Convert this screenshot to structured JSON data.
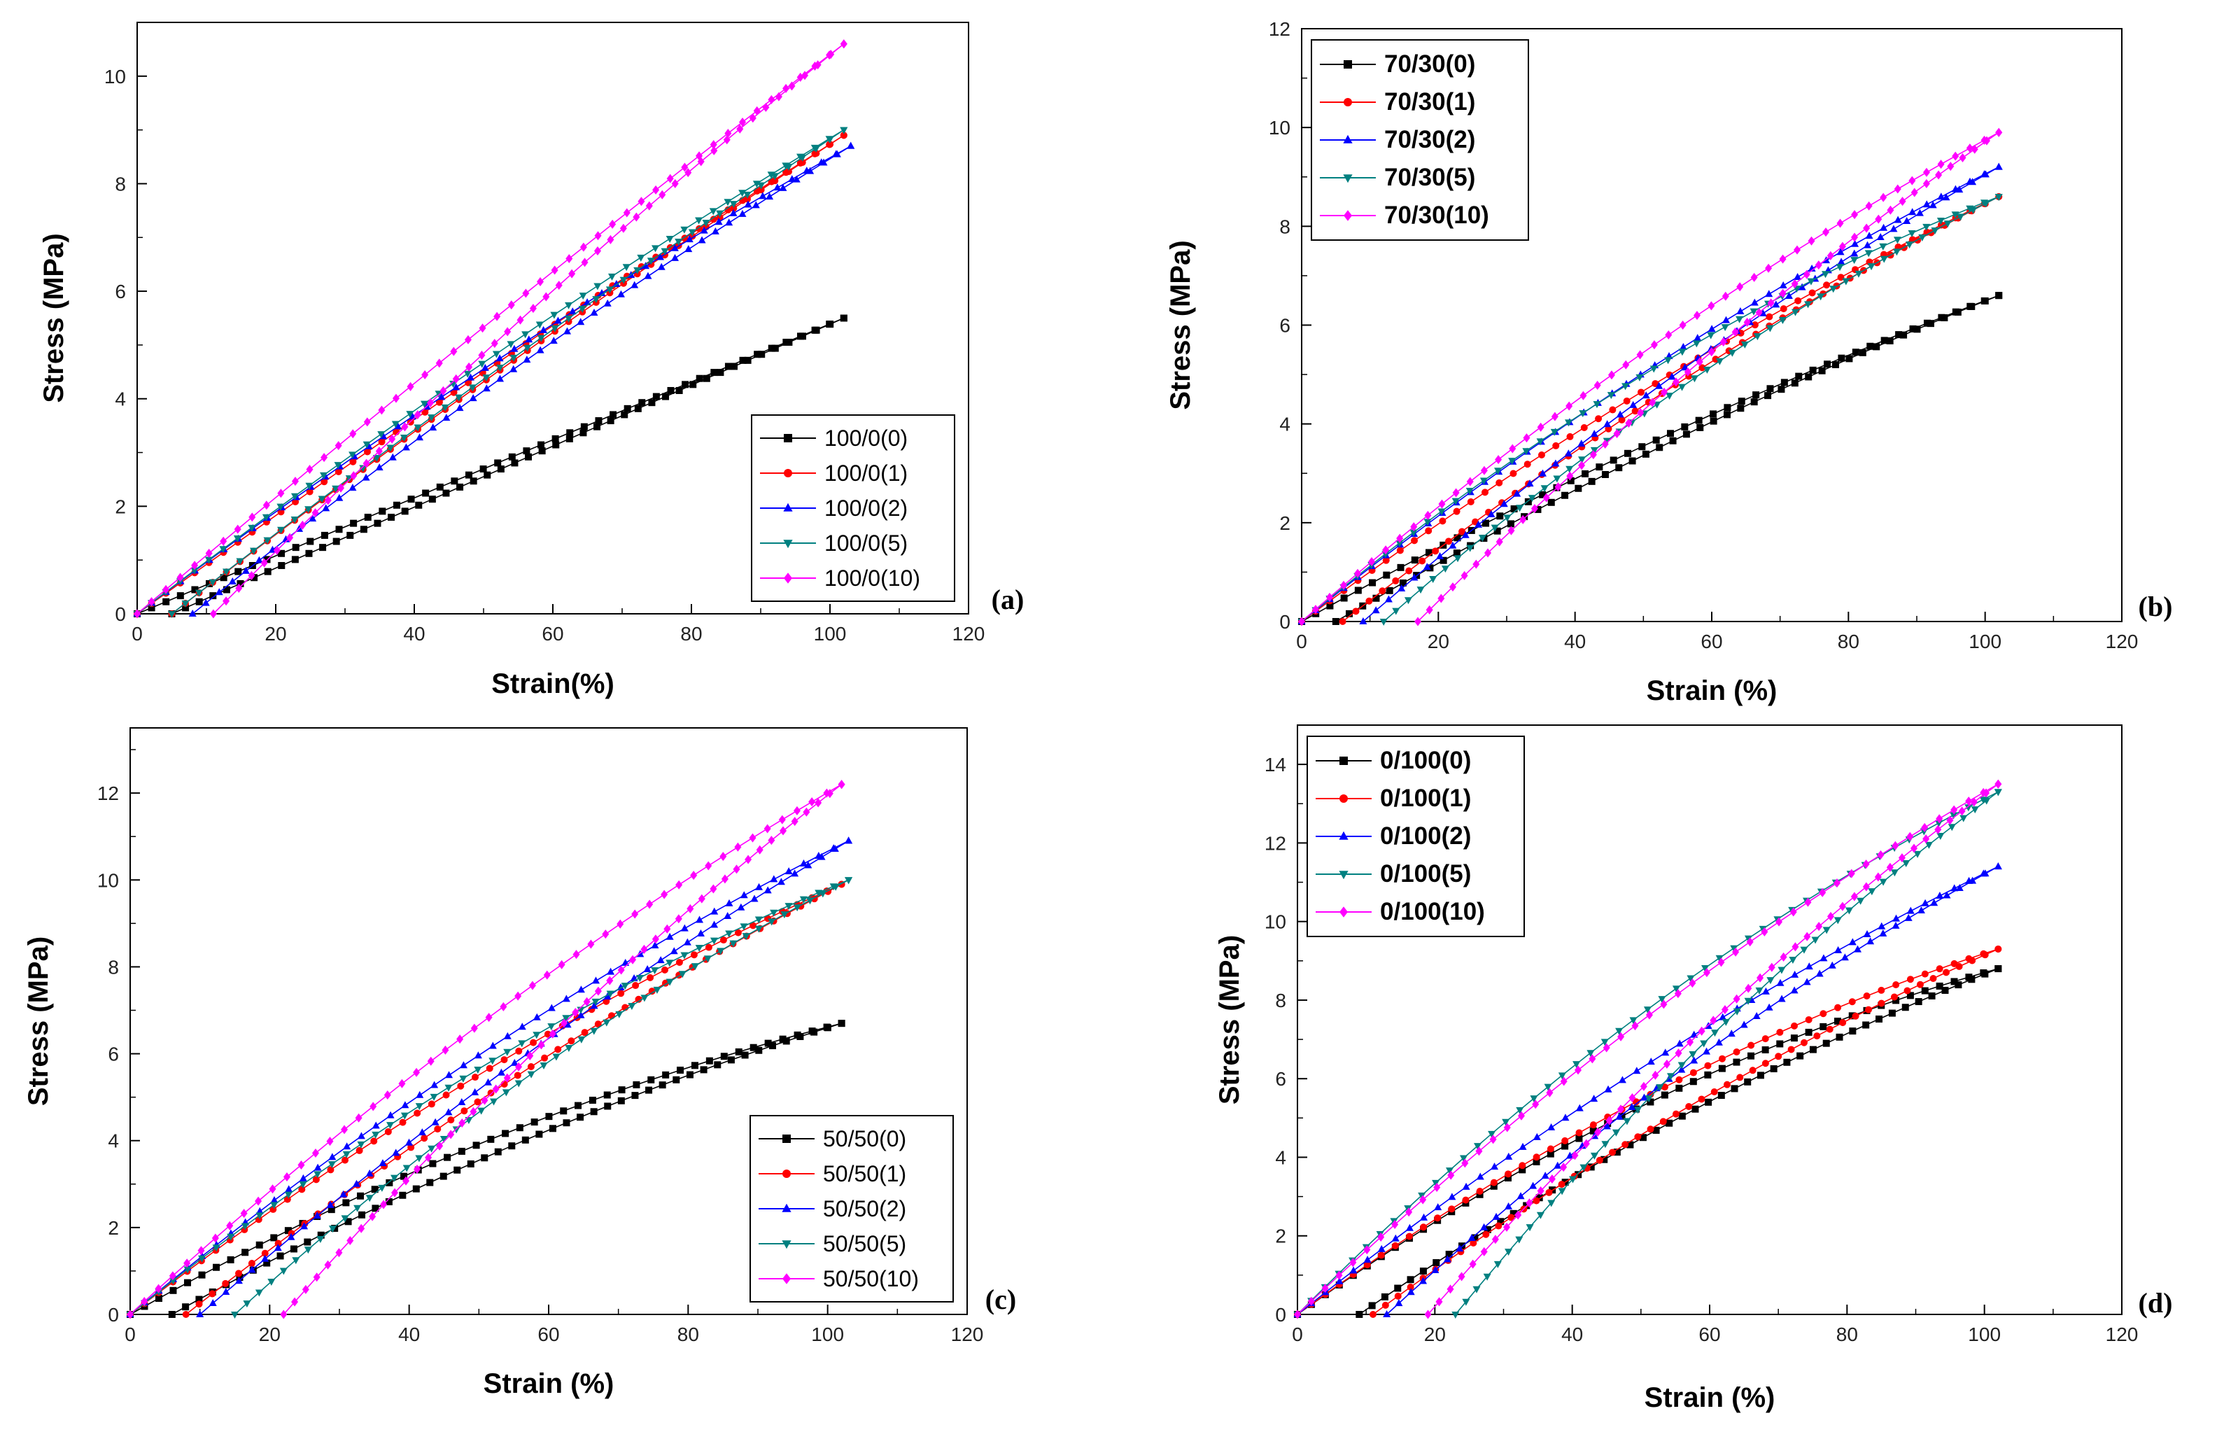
{
  "colors": {
    "series": [
      "#000000",
      "#ff0000",
      "#0000ff",
      "#008080",
      "#ff00ff"
    ],
    "markers": [
      "square",
      "circle",
      "triangle-up",
      "triangle-down",
      "diamond"
    ]
  },
  "chart_data": [
    {
      "type": "line",
      "panel_label": "(a)",
      "xlabel": "Strain(%)",
      "ylabel": "Stress (MPa)",
      "xlim": [
        0,
        120
      ],
      "ylim": [
        0,
        11
      ],
      "xticks": [
        0,
        20,
        40,
        60,
        80,
        100,
        120
      ],
      "yticks": [
        0,
        2,
        4,
        6,
        8,
        10
      ],
      "legend_position": "bottom-right",
      "legend_bold": false,
      "series": [
        {
          "name": "100/0(0)",
          "load": [
            [
              0,
              0
            ],
            [
              102,
              5.5
            ]
          ],
          "load_curv": 0.0,
          "unload": [
            [
              102,
              5.5
            ],
            [
              5,
              0
            ]
          ],
          "unload_curv": 0.0,
          "points": 50
        },
        {
          "name": "100/0(1)",
          "load": [
            [
              0,
              0
            ],
            [
              102,
              8.9
            ]
          ],
          "load_curv": 0.02,
          "unload": [
            [
              102,
              8.9
            ],
            [
              5,
              0
            ]
          ],
          "unload_curv": -0.03,
          "points": 50
        },
        {
          "name": "100/0(2)",
          "load": [
            [
              0,
              0
            ],
            [
              103,
              8.7
            ]
          ],
          "load_curv": 0.05,
          "unload": [
            [
              103,
              8.7
            ],
            [
              8,
              0
            ]
          ],
          "unload_curv": -0.05,
          "points": 50
        },
        {
          "name": "100/0(5)",
          "load": [
            [
              0,
              0
            ],
            [
              102,
              9.0
            ]
          ],
          "load_curv": 0.04,
          "unload": [
            [
              102,
              9.0
            ],
            [
              5,
              0
            ]
          ],
          "unload_curv": -0.03,
          "points": 50
        },
        {
          "name": "100/0(10)",
          "load": [
            [
              0,
              0
            ],
            [
              102,
              10.6
            ]
          ],
          "load_curv": 0.02,
          "unload": [
            [
              102,
              10.6
            ],
            [
              11,
              0
            ]
          ],
          "unload_curv": -0.05,
          "points": 50
        }
      ]
    },
    {
      "type": "line",
      "panel_label": "(b)",
      "xlabel": "Strain (%)",
      "ylabel": "Stress (MPa)",
      "xlim": [
        0,
        120
      ],
      "ylim": [
        0,
        12
      ],
      "xticks": [
        0,
        20,
        40,
        60,
        80,
        100,
        120
      ],
      "yticks": [
        0,
        2,
        4,
        6,
        8,
        10,
        12
      ],
      "legend_position": "top-left",
      "legend_bold": true,
      "series": [
        {
          "name": "70/30(0)",
          "load": [
            [
              0,
              0
            ],
            [
              102,
              6.6
            ]
          ],
          "load_curv": 0.05,
          "unload": [
            [
              102,
              6.6
            ],
            [
              5,
              0
            ]
          ],
          "unload_curv": -0.05,
          "points": 50
        },
        {
          "name": "70/30(1)",
          "load": [
            [
              0,
              0
            ],
            [
              102,
              8.6
            ]
          ],
          "load_curv": 0.07,
          "unload": [
            [
              102,
              8.6
            ],
            [
              6,
              0
            ]
          ],
          "unload_curv": -0.07,
          "points": 50
        },
        {
          "name": "70/30(2)",
          "load": [
            [
              0,
              0
            ],
            [
              102,
              9.2
            ]
          ],
          "load_curv": 0.08,
          "unload": [
            [
              102,
              9.2
            ],
            [
              9,
              0
            ]
          ],
          "unload_curv": -0.08,
          "points": 50
        },
        {
          "name": "70/30(5)",
          "load": [
            [
              0,
              0
            ],
            [
              102,
              8.6
            ]
          ],
          "load_curv": 0.12,
          "unload": [
            [
              102,
              8.6
            ],
            [
              12,
              0
            ]
          ],
          "unload_curv": -0.1,
          "points": 50
        },
        {
          "name": "70/30(10)",
          "load": [
            [
              0,
              0
            ],
            [
              102,
              9.9
            ]
          ],
          "load_curv": 0.09,
          "unload": [
            [
              102,
              9.9
            ],
            [
              17,
              0
            ]
          ],
          "unload_curv": -0.08,
          "points": 50
        }
      ]
    },
    {
      "type": "line",
      "panel_label": "(c)",
      "xlabel": "Strain (%)",
      "ylabel": "Stress (MPa)",
      "xlim": [
        0,
        120
      ],
      "ylim": [
        0,
        13.5
      ],
      "xticks": [
        0,
        20,
        40,
        60,
        80,
        100,
        120
      ],
      "yticks": [
        0,
        2,
        4,
        6,
        8,
        10,
        12
      ],
      "legend_position": "bottom-right",
      "legend_bold": false,
      "series": [
        {
          "name": "50/50(0)",
          "load": [
            [
              0,
              0
            ],
            [
              102,
              6.7
            ]
          ],
          "load_curv": 0.1,
          "unload": [
            [
              102,
              6.7
            ],
            [
              6,
              0
            ]
          ],
          "unload_curv": -0.08,
          "points": 50
        },
        {
          "name": "50/50(1)",
          "load": [
            [
              0,
              0
            ],
            [
              102,
              9.9
            ]
          ],
          "load_curv": 0.1,
          "unload": [
            [
              102,
              9.9
            ],
            [
              8,
              0
            ]
          ],
          "unload_curv": -0.08,
          "points": 50
        },
        {
          "name": "50/50(2)",
          "load": [
            [
              0,
              0
            ],
            [
              103,
              10.9
            ]
          ],
          "load_curv": 0.1,
          "unload": [
            [
              103,
              10.9
            ],
            [
              10,
              0
            ]
          ],
          "unload_curv": -0.08,
          "points": 50
        },
        {
          "name": "50/50(5)",
          "load": [
            [
              0,
              0
            ],
            [
              103,
              10.0
            ]
          ],
          "load_curv": 0.12,
          "unload": [
            [
              103,
              10.0
            ],
            [
              15,
              0
            ]
          ],
          "unload_curv": -0.12,
          "points": 50
        },
        {
          "name": "50/50(10)",
          "load": [
            [
              0,
              0
            ],
            [
              102,
              12.2
            ]
          ],
          "load_curv": 0.1,
          "unload": [
            [
              102,
              12.2
            ],
            [
              22,
              0
            ]
          ],
          "unload_curv": -0.1,
          "points": 50
        }
      ]
    },
    {
      "type": "line",
      "panel_label": "(d)",
      "xlabel": "Strain (%)",
      "ylabel": "Stress (MPa)",
      "xlim": [
        0,
        120
      ],
      "ylim": [
        0,
        15
      ],
      "xticks": [
        0,
        20,
        40,
        60,
        80,
        100,
        120
      ],
      "yticks": [
        0,
        2,
        4,
        6,
        8,
        10,
        12,
        14
      ],
      "legend_position": "top-left",
      "legend_bold": true,
      "series": [
        {
          "name": "0/100(0)",
          "load": [
            [
              0,
              0
            ],
            [
              102,
              8.8
            ]
          ],
          "load_curv": 0.15,
          "unload": [
            [
              102,
              8.8
            ],
            [
              9,
              0
            ]
          ],
          "unload_curv": -0.1,
          "points": 50
        },
        {
          "name": "0/100(1)",
          "load": [
            [
              0,
              0
            ],
            [
              102,
              9.3
            ]
          ],
          "load_curv": 0.14,
          "unload": [
            [
              102,
              9.3
            ],
            [
              11,
              0
            ]
          ],
          "unload_curv": -0.1,
          "points": 50
        },
        {
          "name": "0/100(2)",
          "load": [
            [
              0,
              0
            ],
            [
              102,
              11.4
            ]
          ],
          "load_curv": 0.1,
          "unload": [
            [
              102,
              11.4
            ],
            [
              13,
              0
            ]
          ],
          "unload_curv": -0.12,
          "points": 50
        },
        {
          "name": "0/100(5)",
          "load": [
            [
              0,
              0
            ],
            [
              102,
              13.3
            ]
          ],
          "load_curv": 0.16,
          "unload": [
            [
              102,
              13.3
            ],
            [
              23,
              0
            ]
          ],
          "unload_curv": -0.14,
          "points": 50
        },
        {
          "name": "0/100(10)",
          "load": [
            [
              0,
              0
            ],
            [
              102,
              13.5
            ]
          ],
          "load_curv": 0.12,
          "unload": [
            [
              102,
              13.5
            ],
            [
              19,
              0
            ]
          ],
          "unload_curv": -0.12,
          "points": 50
        }
      ]
    }
  ]
}
